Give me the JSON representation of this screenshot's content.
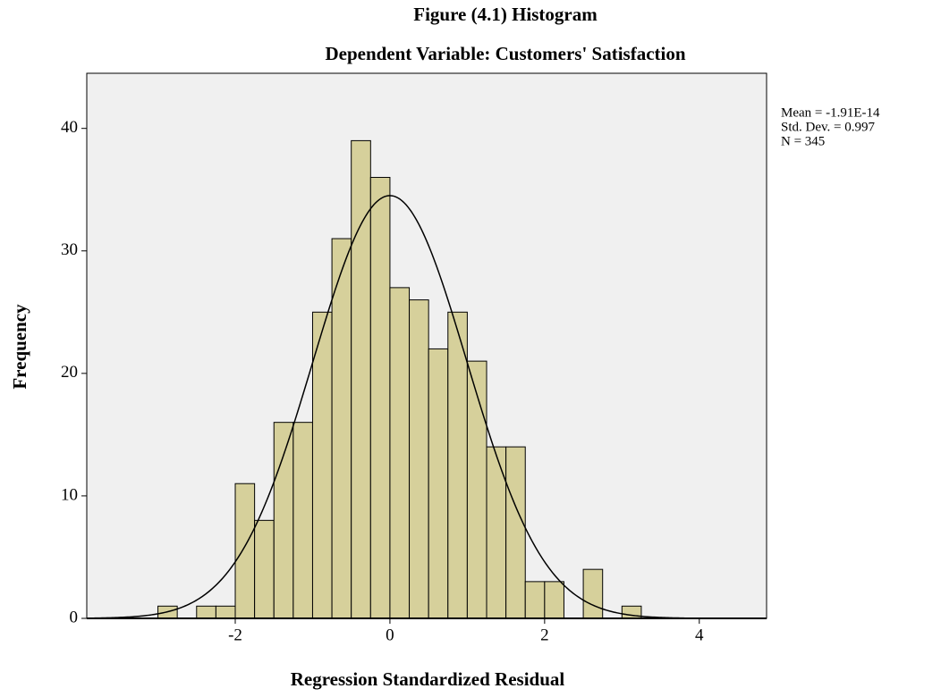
{
  "chart_data": {
    "type": "histogram",
    "title": "Figure (4.1) Histogram",
    "subtitle": "Dependent Variable: Customers' Satisfaction",
    "xlabel": "Regression Standardized Residual",
    "ylabel": "Frequency",
    "bins": [
      -3,
      -2.75,
      -2.5,
      -2.25,
      -2,
      -1.75,
      -1.5,
      -1.25,
      -1,
      -0.75,
      -0.5,
      -0.25,
      0,
      0.25,
      0.5,
      0.75,
      1,
      1.25,
      1.5,
      1.75,
      2,
      2.25,
      2.5,
      2.75,
      3,
      3.25
    ],
    "counts": [
      1,
      0,
      1,
      1,
      11,
      8,
      16,
      16,
      25,
      31,
      39,
      36,
      27,
      26,
      22,
      25,
      21,
      14,
      14,
      3,
      3,
      0,
      4,
      0,
      1
    ],
    "color": "#d6d09b",
    "curve": {
      "mean": -1.91e-14,
      "std_dev": 0.997,
      "n": 345
    },
    "annotations": [
      "Mean = -1.91E-14",
      "Std. Dev. = 0.997",
      "N = 345"
    ],
    "xlim": [
      -3.92,
      4.87
    ],
    "ylim": [
      0,
      44.5
    ],
    "xticks": [
      -2,
      0,
      2,
      4
    ],
    "yticks": [
      0,
      10,
      20,
      30,
      40
    ],
    "grid": false
  }
}
